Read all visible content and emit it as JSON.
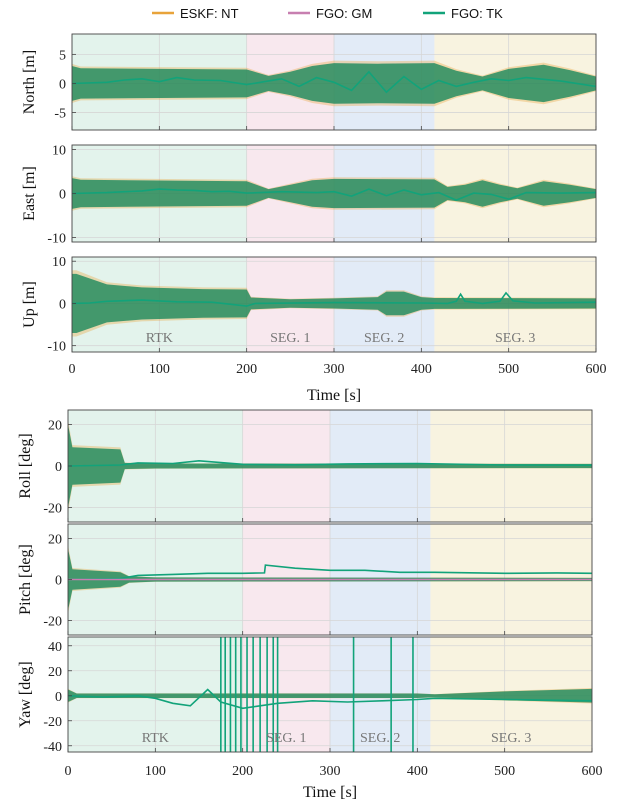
{
  "chart_data": {
    "type": "line",
    "legend": {
      "placement": "top-center",
      "entries": [
        {
          "name": "ESKF: NT",
          "color": "#e8a33a"
        },
        {
          "name": "FGO: GM",
          "color": "#c77fb0"
        },
        {
          "name": "FGO: TK",
          "color": "#12a37a"
        }
      ]
    },
    "band_color": "#1f8a5e",
    "segments": [
      {
        "label": "RTK",
        "start": 0,
        "end": 200,
        "color": "#e3f3ec"
      },
      {
        "label": "SEG. 1",
        "start": 200,
        "end": 300,
        "color": "#f8e8ee"
      },
      {
        "label": "SEG. 2",
        "start": 300,
        "end": 415,
        "color": "#e2ebf7"
      },
      {
        "label": "SEG. 3",
        "start": 415,
        "end": 600,
        "color": "#f8f3e0"
      }
    ],
    "groups": [
      {
        "xlabel": "Time [s]",
        "xlim": [
          0,
          600
        ],
        "xticks": [
          0,
          100,
          200,
          300,
          400,
          500,
          600
        ],
        "panels": [
          {
            "ylabel": "North [m]",
            "ylim": [
              -8,
              8.5
            ],
            "yticks": [
              -5,
              0,
              5
            ],
            "envelope": [
              [
                0,
                3
              ],
              [
                10,
                2.6
              ],
              [
                200,
                2.4
              ],
              [
                225,
                1.3
              ],
              [
                250,
                2.0
              ],
              [
                275,
                3.0
              ],
              [
                300,
                3.5
              ],
              [
                350,
                3.4
              ],
              [
                415,
                3.5
              ],
              [
                440,
                2.2
              ],
              [
                470,
                1.2
              ],
              [
                500,
                2.5
              ],
              [
                540,
                3.2
              ],
              [
                570,
                2.3
              ],
              [
                600,
                1.2
              ]
            ],
            "series": [
              {
                "name": "FGO: TK",
                "points": [
                  [
                    0,
                    0
                  ],
                  [
                    40,
                    0.2
                  ],
                  [
                    60,
                    0.6
                  ],
                  [
                    80,
                    0.8
                  ],
                  [
                    100,
                    0.3
                  ],
                  [
                    120,
                    1.0
                  ],
                  [
                    140,
                    0.6
                  ],
                  [
                    170,
                    0.5
                  ],
                  [
                    200,
                    -0.2
                  ],
                  [
                    220,
                    0.3
                  ],
                  [
                    240,
                    0.8
                  ],
                  [
                    260,
                    -0.5
                  ],
                  [
                    280,
                    1.0
                  ],
                  [
                    300,
                    0.2
                  ],
                  [
                    320,
                    -1.2
                  ],
                  [
                    340,
                    2.0
                  ],
                  [
                    360,
                    -1.5
                  ],
                  [
                    380,
                    1.2
                  ],
                  [
                    400,
                    -1.0
                  ],
                  [
                    420,
                    0.5
                  ],
                  [
                    440,
                    -0.5
                  ],
                  [
                    460,
                    0.2
                  ],
                  [
                    480,
                    0.8
                  ],
                  [
                    500,
                    0.5
                  ],
                  [
                    520,
                    1.0
                  ],
                  [
                    560,
                    0.4
                  ],
                  [
                    600,
                    -0.5
                  ]
                ]
              }
            ],
            "segment_labels": false
          },
          {
            "ylabel": "East [m]",
            "ylim": [
              -11,
              11
            ],
            "yticks": [
              -10,
              0,
              10
            ],
            "envelope": [
              [
                0,
                3.5
              ],
              [
                10,
                3.1
              ],
              [
                200,
                2.8
              ],
              [
                225,
                1.0
              ],
              [
                250,
                2.0
              ],
              [
                275,
                3.0
              ],
              [
                300,
                3.3
              ],
              [
                415,
                3.2
              ],
              [
                430,
                1.5
              ],
              [
                450,
                2.0
              ],
              [
                470,
                3.0
              ],
              [
                490,
                2.0
              ],
              [
                510,
                1.2
              ],
              [
                540,
                2.8
              ],
              [
                570,
                2.0
              ],
              [
                600,
                1.0
              ]
            ],
            "series": [
              {
                "name": "FGO: TK",
                "points": [
                  [
                    0,
                    0
                  ],
                  [
                    40,
                    0.2
                  ],
                  [
                    80,
                    0.6
                  ],
                  [
                    100,
                    1.0
                  ],
                  [
                    120,
                    0.8
                  ],
                  [
                    140,
                    0.7
                  ],
                  [
                    160,
                    0.4
                  ],
                  [
                    180,
                    0.5
                  ],
                  [
                    200,
                    0.1
                  ],
                  [
                    240,
                    0.4
                  ],
                  [
                    280,
                    0.2
                  ],
                  [
                    300,
                    0.4
                  ],
                  [
                    320,
                    -0.6
                  ],
                  [
                    340,
                    1.0
                  ],
                  [
                    360,
                    -0.5
                  ],
                  [
                    380,
                    0.8
                  ],
                  [
                    400,
                    -0.3
                  ],
                  [
                    420,
                    0.2
                  ],
                  [
                    440,
                    -1.5
                  ],
                  [
                    460,
                    0.1
                  ],
                  [
                    480,
                    -0.2
                  ],
                  [
                    500,
                    -1.3
                  ],
                  [
                    520,
                    0.2
                  ],
                  [
                    560,
                    0.1
                  ],
                  [
                    600,
                    0.2
                  ]
                ]
              }
            ],
            "segment_labels": false
          },
          {
            "ylabel": "Up [m]",
            "ylim": [
              -11.5,
              11
            ],
            "yticks": [
              -10,
              0,
              10
            ],
            "envelope": [
              [
                0,
                7
              ],
              [
                5,
                7
              ],
              [
                40,
                4.5
              ],
              [
                80,
                3.8
              ],
              [
                150,
                3.4
              ],
              [
                200,
                3.3
              ],
              [
                205,
                1.4
              ],
              [
                250,
                1.0
              ],
              [
                300,
                1.2
              ],
              [
                350,
                1.5
              ],
              [
                360,
                2.8
              ],
              [
                380,
                2.8
              ],
              [
                400,
                1.5
              ],
              [
                415,
                1.3
              ],
              [
                600,
                1.2
              ]
            ],
            "series": [
              {
                "name": "FGO: TK",
                "points": [
                  [
                    0,
                    0
                  ],
                  [
                    20,
                    0.1
                  ],
                  [
                    40,
                    0.5
                  ],
                  [
                    80,
                    0.8
                  ],
                  [
                    120,
                    0.4
                  ],
                  [
                    160,
                    0.3
                  ],
                  [
                    200,
                    -0.6
                  ],
                  [
                    210,
                    0.0
                  ],
                  [
                    300,
                    0.2
                  ],
                  [
                    400,
                    0.1
                  ],
                  [
                    430,
                    0.0
                  ],
                  [
                    440,
                    0.5
                  ],
                  [
                    445,
                    2.2
                  ],
                  [
                    450,
                    0.5
                  ],
                  [
                    470,
                    0.0
                  ],
                  [
                    490,
                    0.5
                  ],
                  [
                    497,
                    2.5
                  ],
                  [
                    505,
                    0.6
                  ],
                  [
                    530,
                    0.1
                  ],
                  [
                    600,
                    0.3
                  ]
                ]
              }
            ],
            "segment_labels": true
          }
        ]
      },
      {
        "xlabel": "Time [s]",
        "xlim": [
          0,
          600
        ],
        "xticks": [
          0,
          100,
          200,
          300,
          400,
          500,
          600
        ],
        "panels": [
          {
            "ylabel": "Roll [deg]",
            "ylim": [
              -27,
              27
            ],
            "yticks": [
              -20,
              0,
              20
            ],
            "envelope": [
              [
                0,
                20
              ],
              [
                5,
                9
              ],
              [
                60,
                8
              ],
              [
                65,
                1.5
              ],
              [
                100,
                1.2
              ],
              [
                600,
                1.0
              ]
            ],
            "series": [
              {
                "name": "FGO: TK",
                "points": [
                  [
                    0,
                    0
                  ],
                  [
                    60,
                    0.5
                  ],
                  [
                    80,
                    1.5
                  ],
                  [
                    120,
                    1.2
                  ],
                  [
                    150,
                    2.5
                  ],
                  [
                    200,
                    0.8
                  ],
                  [
                    260,
                    0.6
                  ],
                  [
                    320,
                    1.0
                  ],
                  [
                    400,
                    1.2
                  ],
                  [
                    500,
                    0.5
                  ],
                  [
                    600,
                    0.4
                  ]
                ]
              }
            ],
            "segment_labels": false
          },
          {
            "ylabel": "Pitch [deg]",
            "ylim": [
              -27,
              27
            ],
            "yticks": [
              -20,
              0,
              20
            ],
            "envelope": [
              [
                0,
                15
              ],
              [
                5,
                5
              ],
              [
                60,
                3.5
              ],
              [
                70,
                1.5
              ],
              [
                100,
                1.0
              ],
              [
                600,
                0.8
              ]
            ],
            "series": [
              {
                "name": "FGO: TK",
                "points": [
                  [
                    0,
                    0
                  ],
                  [
                    60,
                    0.5
                  ],
                  [
                    80,
                    2.0
                  ],
                  [
                    120,
                    2.5
                  ],
                  [
                    160,
                    3.0
                  ],
                  [
                    200,
                    3.0
                  ],
                  [
                    225,
                    3.2
                  ],
                  [
                    226,
                    7.0
                  ],
                  [
                    260,
                    5.5
                  ],
                  [
                    300,
                    4.5
                  ],
                  [
                    340,
                    4.5
                  ],
                  [
                    380,
                    3.5
                  ],
                  [
                    420,
                    3.5
                  ],
                  [
                    500,
                    3.0
                  ],
                  [
                    560,
                    3.2
                  ],
                  [
                    600,
                    3.0
                  ]
                ]
              },
              {
                "name": "FGO: GM",
                "points": [
                  [
                    0,
                    0
                  ],
                  [
                    600,
                    0
                  ]
                ]
              }
            ],
            "segment_labels": false
          },
          {
            "ylabel": "Yaw [deg]",
            "ylim": [
              -45,
              47
            ],
            "yticks": [
              -40,
              -20,
              0,
              20,
              40
            ],
            "envelope": [
              [
                0,
                5
              ],
              [
                10,
                1.8
              ],
              [
                400,
                1.8
              ],
              [
                420,
                1.2
              ],
              [
                500,
                3.5
              ],
              [
                600,
                5.5
              ]
            ],
            "series": [
              {
                "name": "FGO: TK",
                "points": [
                  [
                    0,
                    0
                  ],
                  [
                    40,
                    -1
                  ],
                  [
                    80,
                    0
                  ],
                  [
                    100,
                    -2
                  ],
                  [
                    120,
                    -6
                  ],
                  [
                    140,
                    -8
                  ],
                  [
                    160,
                    5
                  ],
                  [
                    175,
                    -5
                  ],
                  [
                    200,
                    -10
                  ],
                  [
                    240,
                    -6
                  ],
                  [
                    280,
                    -4
                  ],
                  [
                    320,
                    -5
                  ],
                  [
                    360,
                    -4
                  ],
                  [
                    400,
                    -3
                  ],
                  [
                    420,
                    -2
                  ],
                  [
                    500,
                    -3
                  ],
                  [
                    600,
                    -4
                  ]
                ]
              }
            ],
            "spikes": [
              175,
              180,
              186,
              192,
              198,
              205,
              212,
              220,
              228,
              235,
              240,
              327,
              370,
              395
            ],
            "segment_labels": true
          }
        ]
      }
    ]
  }
}
